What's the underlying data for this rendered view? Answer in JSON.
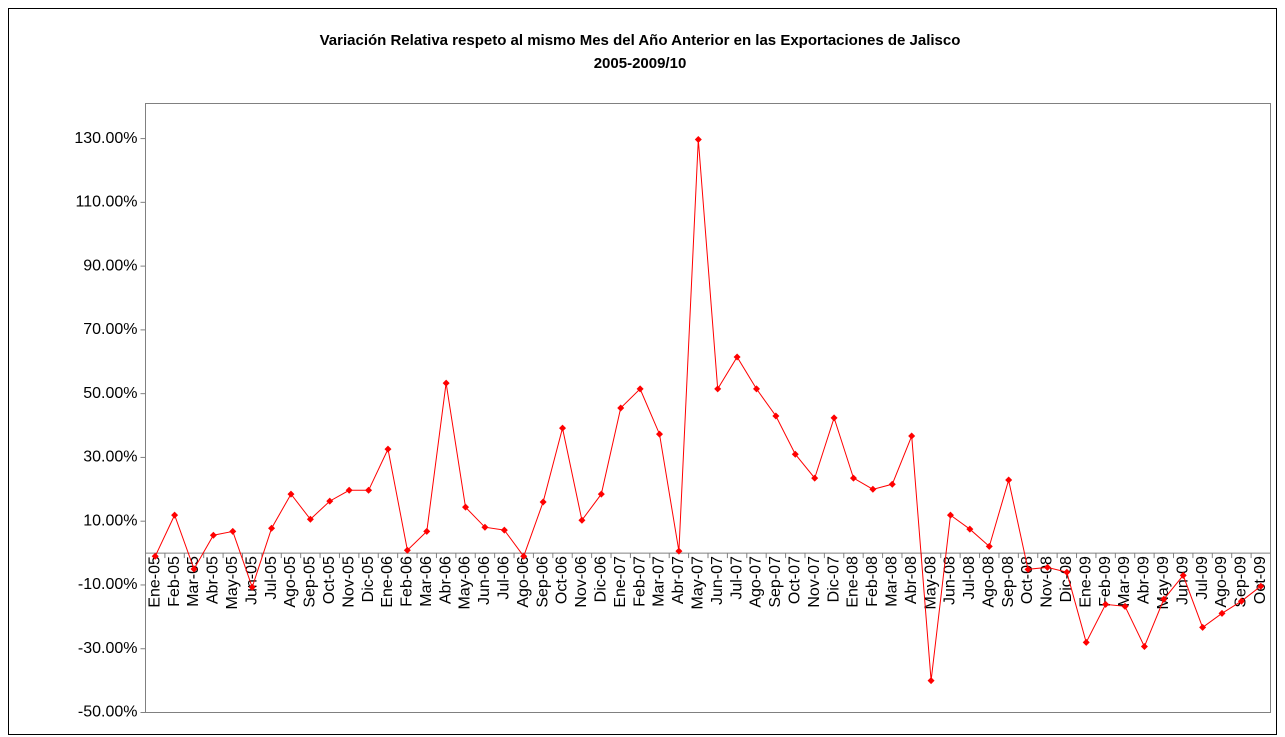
{
  "chart_data": {
    "type": "line",
    "title": "Variación Relativa respeto al mismo Mes del Año Anterior en las Exportaciones de Jalisco",
    "subtitle": "2005-2009/10",
    "categories": [
      "Ene-05",
      "Feb-05",
      "Mar-05",
      "Abr-05",
      "May-05",
      "Jun-05",
      "Jul-05",
      "Ago-05",
      "Sep-05",
      "Oct-05",
      "Nov-05",
      "Dic-05",
      "Ene-06",
      "Feb-06",
      "Mar-06",
      "Abr-06",
      "May-06",
      "Jun-06",
      "Jul-06",
      "Ago-06",
      "Sep-06",
      "Oct-06",
      "Nov-06",
      "Dic-06",
      "Ene-07",
      "Feb-07",
      "Mar-07",
      "Abr-07",
      "May-07",
      "Jun-07",
      "Jul-07",
      "Ago-07",
      "Sep-07",
      "Oct-07",
      "Nov-07",
      "Dic-07",
      "Ene-08",
      "Feb-08",
      "Mar-08",
      "Abr-08",
      "May-08",
      "Jun-08",
      "Jul-08",
      "Ago-08",
      "Sep-08",
      "Oct-08",
      "Nov-08",
      "Dic-08",
      "Ene-09",
      "Feb-09",
      "Mar-09",
      "Abr-09",
      "May-09",
      "Jun-09",
      "Jul-09",
      "Ago-09",
      "Sep-09",
      "Oct-09"
    ],
    "values": [
      -1,
      11.9,
      -5,
      5.6,
      6.8,
      -10.7,
      7.8,
      18.5,
      10.6,
      16.3,
      19.7,
      19.7,
      32.6,
      0.9,
      6.8,
      53.3,
      14.4,
      8.1,
      7.2,
      -1,
      16,
      39.2,
      10.3,
      18.5,
      45.5,
      51.5,
      37.3,
      0.6,
      129.7,
      51.5,
      61.5,
      51.5,
      43,
      31,
      23.5,
      42.4,
      23.5,
      20,
      21.6,
      36.7,
      -40,
      11.9,
      7.5,
      2.1,
      22.9,
      -5.1,
      -4.5,
      -6,
      -28,
      -16.1,
      -16.7,
      -29.3,
      -14.5,
      -7,
      -23.3,
      -18.9,
      -15.1,
      -10.4
    ],
    "color": "#ff0000",
    "ylim": [
      -50,
      141
    ],
    "yticks": [
      {
        "value": -50,
        "label": "-50.00%"
      },
      {
        "value": -30,
        "label": "-30.00%"
      },
      {
        "value": -10,
        "label": "-10.00%"
      },
      {
        "value": 10,
        "label": "10.00%"
      },
      {
        "value": 30,
        "label": "30.00%"
      },
      {
        "value": 50,
        "label": "50.00%"
      },
      {
        "value": 70,
        "label": "70.00%"
      },
      {
        "value": 90,
        "label": "90.00%"
      },
      {
        "value": 110,
        "label": "110.00%"
      },
      {
        "value": 130,
        "label": "130.00%"
      }
    ],
    "grid": false
  }
}
